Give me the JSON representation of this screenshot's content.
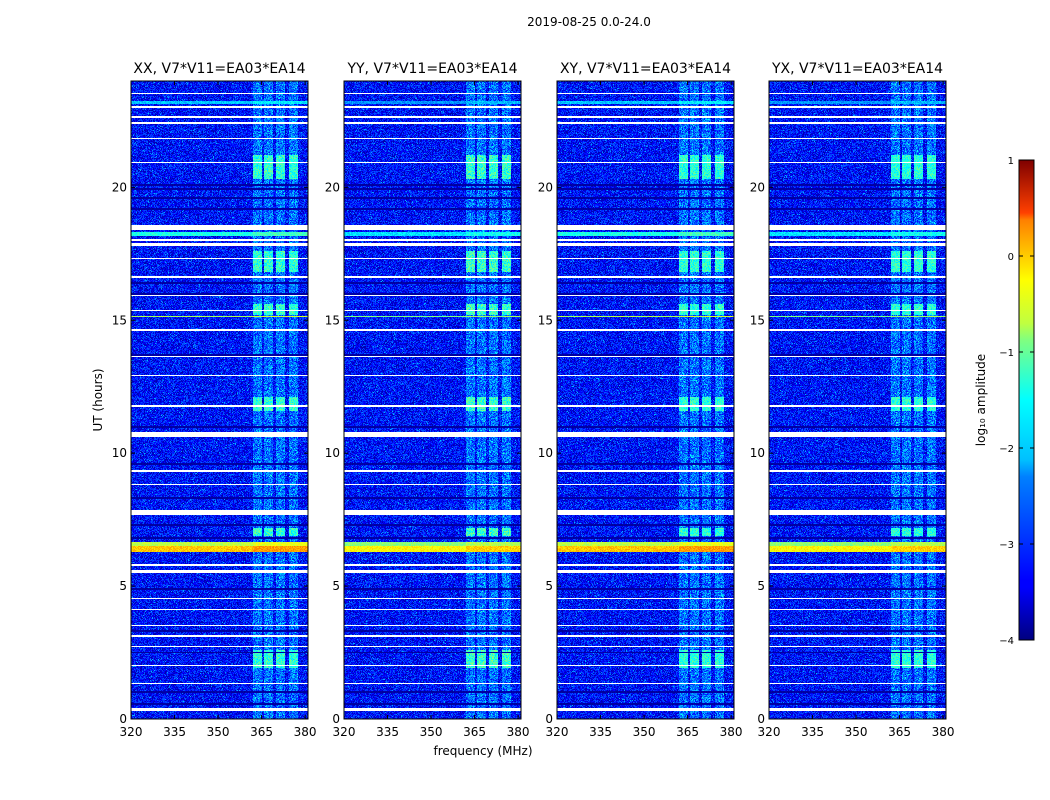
{
  "chart_data": {
    "type": "heatmap",
    "title": "2019-08-25 0.0-24.0",
    "xlabel": "frequency (MHz)",
    "ylabel": "UT (hours)",
    "xlim": [
      320,
      381
    ],
    "ylim": [
      0,
      24
    ],
    "xticks": [
      320,
      335,
      350,
      365,
      380
    ],
    "yticks": [
      0,
      5,
      10,
      15,
      20
    ],
    "panels": [
      {
        "title": "XX, V7*V11=EA03*EA14",
        "seed": 11,
        "bright_scale": 1.0
      },
      {
        "title": "YY, V7*V11=EA03*EA14",
        "seed": 23,
        "bright_scale": 1.15
      },
      {
        "title": "XY, V7*V11=EA03*EA14",
        "seed": 37,
        "bright_scale": 0.9
      },
      {
        "title": "YX, V7*V11=EA03*EA14",
        "seed": 53,
        "bright_scale": 0.85
      }
    ],
    "flagged_bands_ut": [
      [
        0.3,
        0.42
      ],
      [
        5.5,
        5.62
      ],
      [
        5.75,
        5.83
      ],
      [
        7.68,
        7.85
      ],
      [
        10.6,
        10.8
      ],
      [
        11.75,
        11.8
      ],
      [
        12.9,
        12.95
      ],
      [
        13.6,
        13.65
      ],
      [
        14.6,
        14.66
      ],
      [
        15.35,
        15.4
      ],
      [
        15.9,
        15.95
      ],
      [
        16.6,
        16.65
      ],
      [
        17.3,
        17.35
      ],
      [
        17.8,
        17.9
      ],
      [
        18.0,
        18.06
      ],
      [
        18.4,
        18.6
      ],
      [
        20.9,
        20.95
      ],
      [
        21.8,
        21.85
      ],
      [
        22.4,
        22.45
      ],
      [
        22.6,
        22.7
      ],
      [
        23.0,
        23.05
      ],
      [
        23.5,
        23.55
      ],
      [
        1.3,
        1.35
      ],
      [
        2.0,
        2.05
      ],
      [
        2.7,
        2.75
      ],
      [
        3.1,
        3.15
      ],
      [
        3.5,
        3.55
      ],
      [
        4.1,
        4.15
      ],
      [
        4.5,
        4.55
      ],
      [
        8.8,
        8.85
      ],
      [
        9.3,
        9.35
      ]
    ],
    "dark_rows_ut": [
      0.55,
      1.0,
      2.5,
      3.3,
      4.9,
      6.8,
      7.3,
      8.3,
      9.6,
      11.0,
      13.7,
      16.0,
      16.4,
      19.2,
      19.6,
      19.95,
      20.1
    ],
    "rfi_rows_ut": [
      {
        "ut": 6.4,
        "width": 0.2,
        "level": -0.6
      },
      {
        "ut": 6.58,
        "width": 0.12,
        "level": -1.2
      },
      {
        "ut": 18.25,
        "width": 0.15,
        "level": -2.0
      },
      {
        "ut": 15.15,
        "width": 0.05,
        "level": -1.3
      },
      {
        "ut": 23.2,
        "width": 0.12,
        "level": -2.4
      }
    ],
    "rfi_channels_mhz": [
      363.5,
      367.5,
      371.5,
      376.0
    ],
    "bright_blocks_ut": [
      [
        1.9,
        2.6
      ],
      [
        6.9,
        7.2
      ],
      [
        11.6,
        12.1
      ],
      [
        15.2,
        15.6
      ],
      [
        16.8,
        17.6
      ],
      [
        20.3,
        21.2
      ]
    ],
    "colorbar": {
      "label": "log₁₀ amplitude",
      "min": -4,
      "max": 1,
      "ticks": [
        1,
        0,
        -1,
        -2,
        -3,
        -4
      ],
      "tick_labels": [
        "1",
        "0",
        "−1",
        "−2",
        "−3",
        "−4"
      ],
      "colormap": "jet"
    }
  }
}
